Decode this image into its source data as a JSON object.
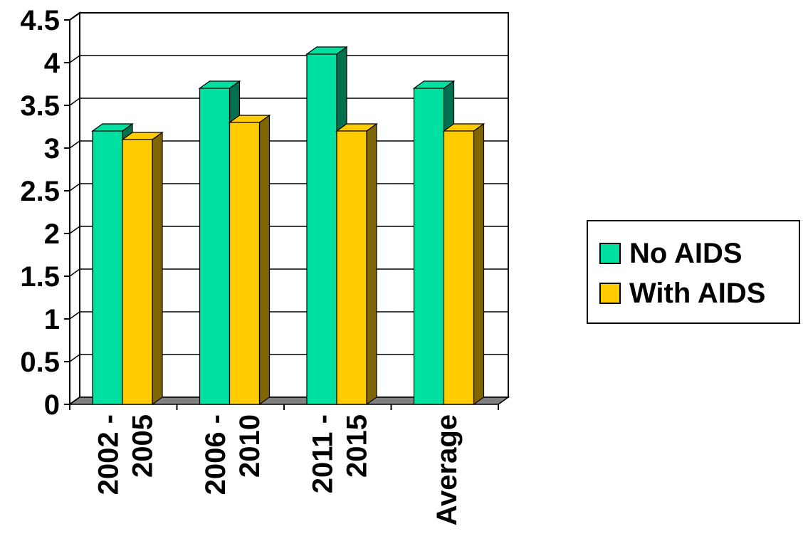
{
  "chart_data": {
    "type": "bar",
    "categories": [
      [
        "2002 -",
        "2005"
      ],
      [
        "2006 -",
        "2010"
      ],
      [
        "2011 -",
        "2015"
      ],
      [
        "Average"
      ]
    ],
    "series": [
      {
        "name": "No AIDS",
        "values": [
          3.2,
          3.7,
          4.1,
          3.7
        ],
        "color": "#00e0a0",
        "side_color": "#007050"
      },
      {
        "name": "With AIDS",
        "values": [
          3.1,
          3.3,
          3.2,
          3.2
        ],
        "color": "#ffcc00",
        "side_color": "#806600"
      }
    ],
    "ylim": [
      0,
      4.5
    ],
    "yticks": [
      "0",
      "0.5",
      "1",
      "1.5",
      "2",
      "2.5",
      "3",
      "3.5",
      "4",
      "4.5"
    ],
    "grid": true,
    "legend_position": "right",
    "three_d": true,
    "colors": {
      "gridline": "#000000",
      "floor": "#808080",
      "wall": "#ffffff"
    }
  }
}
